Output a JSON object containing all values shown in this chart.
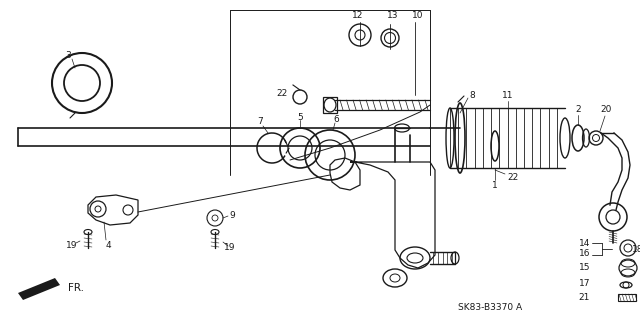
{
  "bg_color": "#ffffff",
  "lc": "#1a1a1a",
  "part_code": "SK83-B3370 A",
  "fig_w": 6.4,
  "fig_h": 3.19,
  "dpi": 100
}
